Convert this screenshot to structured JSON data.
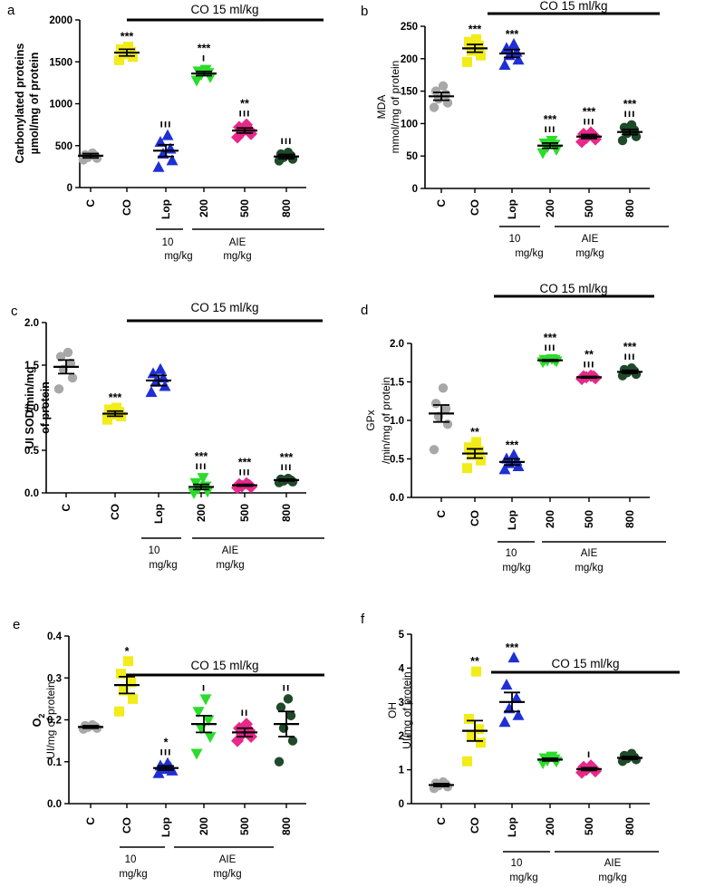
{
  "figure": {
    "background": "#ffffff"
  },
  "colors": {
    "C": "#a8a8a8",
    "CO": "#f2ec1a",
    "Lop": "#1f2fd6",
    "200": "#2bdc2b",
    "500": "#e8288a",
    "800": "#1f4a2a",
    "ink": "#000000"
  },
  "chart_data": [
    {
      "panel": "a",
      "type": "scatter",
      "ylabel": [
        "Carbonylated proteins",
        "µmol/mg of protein"
      ],
      "ylim": [
        0,
        2000
      ],
      "yticks": [
        0,
        500,
        1000,
        1500,
        2000
      ],
      "categories": [
        "C",
        "CO",
        "Lop",
        "200",
        "500",
        "800"
      ],
      "bracket": {
        "text": "CO 15 ml/kg"
      },
      "groups": [
        {
          "line1": "10",
          "line2": "mg/kg"
        },
        {
          "line1": "AIE",
          "line2": "mg/kg"
        }
      ],
      "series": [
        {
          "name": "C",
          "marker": "circle",
          "mean": 380,
          "sem": 25,
          "points": [
            330,
            350,
            360,
            380,
            390,
            410
          ],
          "sig1": "",
          "sig2": ""
        },
        {
          "name": "CO",
          "marker": "square",
          "mean": 1610,
          "sem": 40,
          "points": [
            1520,
            1560,
            1590,
            1620,
            1650,
            1680
          ],
          "sig1": "***",
          "sig2": ""
        },
        {
          "name": "Lop",
          "marker": "triangle-up",
          "mean": 440,
          "sem": 70,
          "points": [
            240,
            320,
            400,
            460,
            540,
            620
          ],
          "sig1": "",
          "sig2": "ııı"
        },
        {
          "name": "200",
          "marker": "triangle-down",
          "mean": 1360,
          "sem": 25,
          "points": [
            1280,
            1320,
            1350,
            1370,
            1390,
            1410
          ],
          "sig1": "***",
          "sig2": "ı"
        },
        {
          "name": "500",
          "marker": "diamond",
          "mean": 680,
          "sem": 30,
          "points": [
            600,
            640,
            660,
            690,
            720,
            750
          ],
          "sig1": "**",
          "sig2": "ııı"
        },
        {
          "name": "800",
          "marker": "circle",
          "mean": 370,
          "sem": 25,
          "points": [
            320,
            340,
            360,
            380,
            400,
            420
          ],
          "sig1": "",
          "sig2": "ııı"
        }
      ]
    },
    {
      "panel": "b",
      "type": "scatter",
      "ylabel": [
        "MDA",
        "mmol/mg of protein"
      ],
      "ylim": [
        0,
        250
      ],
      "yticks": [
        0,
        50,
        100,
        150,
        200,
        250
      ],
      "categories": [
        "C",
        "CO",
        "Lop",
        "200",
        "500",
        "800"
      ],
      "bracket": {
        "text": "CO 15 ml/kg"
      },
      "groups": [
        {
          "line1": "10",
          "line2": "mg/kg"
        },
        {
          "line1": "AIE",
          "line2": "mg/kg"
        }
      ],
      "series": [
        {
          "name": "C",
          "marker": "circle",
          "mean": 142,
          "sem": 6,
          "points": [
            125,
            132,
            138,
            145,
            150,
            158
          ],
          "sig1": "",
          "sig2": ""
        },
        {
          "name": "CO",
          "marker": "square",
          "mean": 216,
          "sem": 6,
          "points": [
            195,
            205,
            212,
            220,
            226,
            230
          ],
          "sig1": "***",
          "sig2": ""
        },
        {
          "name": "Lop",
          "marker": "triangle-up",
          "mean": 208,
          "sem": 6,
          "points": [
            190,
            198,
            205,
            210,
            216,
            222
          ],
          "sig1": "***",
          "sig2": ""
        },
        {
          "name": "200",
          "marker": "triangle-down",
          "mean": 66,
          "sem": 4,
          "points": [
            55,
            60,
            64,
            68,
            70,
            74
          ],
          "sig1": "***",
          "sig2": "ııı"
        },
        {
          "name": "500",
          "marker": "diamond",
          "mean": 80,
          "sem": 3,
          "points": [
            72,
            76,
            78,
            82,
            84,
            86
          ],
          "sig1": "***",
          "sig2": "ııı"
        },
        {
          "name": "800",
          "marker": "circle",
          "mean": 87,
          "sem": 4,
          "points": [
            74,
            80,
            85,
            90,
            94,
            98
          ],
          "sig1": "***",
          "sig2": "ııı"
        }
      ]
    },
    {
      "panel": "c",
      "type": "scatter",
      "ylabel": [
        "UI SOD/min/mg",
        "of protein"
      ],
      "ylim": [
        0,
        2.0
      ],
      "yticks": [
        0.0,
        0.5,
        1.0,
        1.5,
        2.0
      ],
      "categories": [
        "C",
        "CO",
        "Lop",
        "200",
        "500",
        "800"
      ],
      "bracket": {
        "text": "CO 15 ml/kg"
      },
      "groups": [
        {
          "line1": "10",
          "line2": "mg/kg"
        },
        {
          "line1": "AIE",
          "line2": "mg/kg"
        }
      ],
      "series": [
        {
          "name": "C",
          "marker": "circle",
          "mean": 1.48,
          "sem": 0.08,
          "points": [
            1.22,
            1.35,
            1.45,
            1.52,
            1.6,
            1.65
          ],
          "sig1": "",
          "sig2": ""
        },
        {
          "name": "CO",
          "marker": "square",
          "mean": 0.93,
          "sem": 0.03,
          "points": [
            0.86,
            0.9,
            0.92,
            0.95,
            0.98,
            1.0
          ],
          "sig1": "***",
          "sig2": ""
        },
        {
          "name": "Lop",
          "marker": "triangle-up",
          "mean": 1.32,
          "sem": 0.06,
          "points": [
            1.18,
            1.25,
            1.3,
            1.35,
            1.4,
            1.45
          ],
          "sig1": "",
          "sig2": ""
        },
        {
          "name": "200",
          "marker": "triangle-down",
          "mean": 0.07,
          "sem": 0.03,
          "points": [
            0.0,
            0.02,
            0.05,
            0.08,
            0.12,
            0.18
          ],
          "sig1": "***",
          "sig2": "ııı"
        },
        {
          "name": "500",
          "marker": "diamond",
          "mean": 0.09,
          "sem": 0.01,
          "points": [
            0.06,
            0.07,
            0.08,
            0.09,
            0.1,
            0.11
          ],
          "sig1": "***",
          "sig2": "ııı"
        },
        {
          "name": "800",
          "marker": "circle",
          "mean": 0.15,
          "sem": 0.01,
          "points": [
            0.12,
            0.13,
            0.14,
            0.15,
            0.16,
            0.17
          ],
          "sig1": "***",
          "sig2": "ııı"
        }
      ]
    },
    {
      "panel": "d",
      "type": "scatter",
      "ylabel": [
        "GPx",
        "/min/mg of protein"
      ],
      "ylim": [
        0,
        2.0
      ],
      "yticks": [
        0.0,
        0.5,
        1.0,
        1.5,
        2.0
      ],
      "categories": [
        "C",
        "CO",
        "Lop",
        "200",
        "500",
        "800"
      ],
      "bracket": {
        "text": "CO 15 ml/kg"
      },
      "groups": [
        {
          "line1": "10",
          "line2": "mg/kg"
        },
        {
          "line1": "AIE",
          "line2": "mg/kg"
        }
      ],
      "series": [
        {
          "name": "C",
          "marker": "circle",
          "mean": 1.09,
          "sem": 0.11,
          "points": [
            0.62,
            0.95,
            1.05,
            1.15,
            1.22,
            1.42
          ],
          "sig1": "",
          "sig2": ""
        },
        {
          "name": "CO",
          "marker": "square",
          "mean": 0.57,
          "sem": 0.06,
          "points": [
            0.38,
            0.48,
            0.55,
            0.6,
            0.65,
            0.72
          ],
          "sig1": "**",
          "sig2": ""
        },
        {
          "name": "Lop",
          "marker": "triangle-up",
          "mean": 0.46,
          "sem": 0.04,
          "points": [
            0.36,
            0.4,
            0.44,
            0.47,
            0.5,
            0.55
          ],
          "sig1": "***",
          "sig2": ""
        },
        {
          "name": "200",
          "marker": "triangle-down",
          "mean": 1.78,
          "sem": 0.01,
          "points": [
            1.76,
            1.77,
            1.78,
            1.79,
            1.79,
            1.8
          ],
          "sig1": "***",
          "sig2": "ııı"
        },
        {
          "name": "500",
          "marker": "diamond",
          "mean": 1.56,
          "sem": 0.01,
          "points": [
            1.54,
            1.55,
            1.56,
            1.57,
            1.57,
            1.58
          ],
          "sig1": "**",
          "sig2": "ııı"
        },
        {
          "name": "800",
          "marker": "circle",
          "mean": 1.63,
          "sem": 0.02,
          "points": [
            1.58,
            1.6,
            1.62,
            1.64,
            1.66,
            1.68
          ],
          "sig1": "***",
          "sig2": "ııı"
        }
      ]
    },
    {
      "panel": "e",
      "type": "scatter",
      "ylabel": [
        "O2",
        "UI/mg of protein"
      ],
      "ylim": [
        0,
        0.4
      ],
      "yticks": [
        0.0,
        0.1,
        0.2,
        0.3,
        0.4
      ],
      "categories": [
        "C",
        "CO",
        "Lop",
        "200",
        "500",
        "800"
      ],
      "bracket": {
        "text": "CO 15 ml/kg"
      },
      "groups": [
        {
          "line1": "10",
          "line2": "mg/kg"
        },
        {
          "line1": "AIE",
          "line2": "mg/kg"
        }
      ],
      "series": [
        {
          "name": "C",
          "marker": "circle",
          "mean": 0.183,
          "sem": 0.003,
          "points": [
            0.178,
            0.18,
            0.182,
            0.184,
            0.186,
            0.188
          ],
          "sig1": "",
          "sig2": ""
        },
        {
          "name": "CO",
          "marker": "square",
          "mean": 0.283,
          "sem": 0.02,
          "points": [
            0.22,
            0.25,
            0.27,
            0.29,
            0.31,
            0.34
          ],
          "sig1": "*",
          "sig2": ""
        },
        {
          "name": "Lop",
          "marker": "triangle-up",
          "mean": 0.085,
          "sem": 0.005,
          "points": [
            0.072,
            0.078,
            0.082,
            0.086,
            0.09,
            0.096
          ],
          "sig1": "*",
          "sig2": "ııı"
        },
        {
          "name": "200",
          "marker": "triangle-down",
          "mean": 0.19,
          "sem": 0.02,
          "points": [
            0.12,
            0.16,
            0.18,
            0.2,
            0.22,
            0.25
          ],
          "sig1": "",
          "sig2": "ı"
        },
        {
          "name": "500",
          "marker": "diamond",
          "mean": 0.17,
          "sem": 0.01,
          "points": [
            0.15,
            0.16,
            0.165,
            0.175,
            0.18,
            0.19
          ],
          "sig1": "",
          "sig2": "ıı"
        },
        {
          "name": "800",
          "marker": "circle",
          "mean": 0.19,
          "sem": 0.03,
          "points": [
            0.1,
            0.15,
            0.18,
            0.21,
            0.23,
            0.25
          ],
          "sig1": "",
          "sig2": "ıı"
        }
      ]
    },
    {
      "panel": "f",
      "type": "scatter",
      "ylabel": [
        "OH",
        "UI/mg of protein"
      ],
      "ylim": [
        0,
        5
      ],
      "yticks": [
        0,
        1,
        2,
        3,
        4,
        5
      ],
      "categories": [
        "C",
        "CO",
        "Lop",
        "200",
        "500",
        "800"
      ],
      "bracket": {
        "text": "CO 15 ml/kg"
      },
      "groups": [
        {
          "line1": "10",
          "line2": "mg/kg"
        },
        {
          "line1": "AIE",
          "line2": "mg/kg"
        }
      ],
      "series": [
        {
          "name": "C",
          "marker": "circle",
          "mean": 0.55,
          "sem": 0.04,
          "points": [
            0.45,
            0.5,
            0.53,
            0.57,
            0.6,
            0.64
          ],
          "sig1": "",
          "sig2": ""
        },
        {
          "name": "CO",
          "marker": "square",
          "mean": 2.15,
          "sem": 0.3,
          "points": [
            1.25,
            1.8,
            2.0,
            2.2,
            2.5,
            3.9
          ],
          "sig1": "**",
          "sig2": ""
        },
        {
          "name": "Lop",
          "marker": "triangle-up",
          "mean": 3.0,
          "sem": 0.28,
          "points": [
            2.4,
            2.6,
            2.8,
            3.1,
            3.5,
            4.3
          ],
          "sig1": "***",
          "sig2": ""
        },
        {
          "name": "200",
          "marker": "triangle-down",
          "mean": 1.3,
          "sem": 0.04,
          "points": [
            1.2,
            1.25,
            1.28,
            1.32,
            1.35,
            1.4
          ],
          "sig1": "",
          "sig2": ""
        },
        {
          "name": "500",
          "marker": "diamond",
          "mean": 1.02,
          "sem": 0.04,
          "points": [
            0.92,
            0.96,
            1.0,
            1.04,
            1.08,
            1.12
          ],
          "sig1": "",
          "sig2": "ı"
        },
        {
          "name": "800",
          "marker": "circle",
          "mean": 1.35,
          "sem": 0.04,
          "points": [
            1.25,
            1.3,
            1.33,
            1.37,
            1.42,
            1.48
          ],
          "sig1": "",
          "sig2": ""
        }
      ]
    }
  ]
}
